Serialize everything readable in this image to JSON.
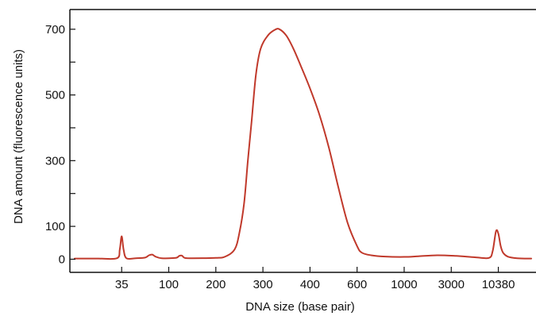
{
  "chart_data": {
    "type": "line",
    "xlabel": "DNA size (base pair)",
    "ylabel": "DNA amount (fluorescence units)",
    "ylim": [
      -40,
      760
    ],
    "y_ticks": [
      0,
      100,
      300,
      500,
      700
    ],
    "x_ticks": [
      {
        "label": "35",
        "pos": 1
      },
      {
        "label": "100",
        "pos": 2
      },
      {
        "label": "200",
        "pos": 3
      },
      {
        "label": "300",
        "pos": 4
      },
      {
        "label": "400",
        "pos": 5
      },
      {
        "label": "600",
        "pos": 6
      },
      {
        "label": "1000",
        "pos": 7
      },
      {
        "label": "3000",
        "pos": 8
      },
      {
        "label": "10380",
        "pos": 9
      }
    ],
    "x_scale": "ordinal ladder positions (non-linear base pair size)",
    "xlim": [
      -0.1,
      9.8
    ],
    "grid": false,
    "legend": "none",
    "line_color": "#c0392b",
    "series": [
      {
        "values": [
          [
            0.0,
            2
          ],
          [
            0.5,
            2
          ],
          [
            0.9,
            3
          ],
          [
            0.96,
            30
          ],
          [
            1.0,
            70
          ],
          [
            1.04,
            30
          ],
          [
            1.1,
            3
          ],
          [
            1.3,
            3
          ],
          [
            1.5,
            5
          ],
          [
            1.58,
            12
          ],
          [
            1.65,
            14
          ],
          [
            1.72,
            8
          ],
          [
            1.85,
            3
          ],
          [
            2.15,
            4
          ],
          [
            2.22,
            10
          ],
          [
            2.28,
            11
          ],
          [
            2.34,
            4
          ],
          [
            2.5,
            3
          ],
          [
            3.0,
            4
          ],
          [
            3.2,
            8
          ],
          [
            3.4,
            30
          ],
          [
            3.5,
            80
          ],
          [
            3.6,
            170
          ],
          [
            3.68,
            300
          ],
          [
            3.76,
            420
          ],
          [
            3.85,
            560
          ],
          [
            3.95,
            640
          ],
          [
            4.1,
            680
          ],
          [
            4.25,
            698
          ],
          [
            4.35,
            700
          ],
          [
            4.5,
            680
          ],
          [
            4.65,
            640
          ],
          [
            4.8,
            590
          ],
          [
            5.0,
            520
          ],
          [
            5.2,
            440
          ],
          [
            5.4,
            340
          ],
          [
            5.6,
            220
          ],
          [
            5.8,
            110
          ],
          [
            6.0,
            40
          ],
          [
            6.1,
            20
          ],
          [
            6.3,
            12
          ],
          [
            6.6,
            8
          ],
          [
            7.0,
            7
          ],
          [
            7.3,
            9
          ],
          [
            7.7,
            12
          ],
          [
            8.1,
            10
          ],
          [
            8.5,
            6
          ],
          [
            8.8,
            4
          ],
          [
            8.88,
            25
          ],
          [
            8.95,
            85
          ],
          [
            9.0,
            78
          ],
          [
            9.05,
            40
          ],
          [
            9.1,
            20
          ],
          [
            9.2,
            8
          ],
          [
            9.4,
            3
          ],
          [
            9.7,
            2
          ]
        ]
      }
    ]
  }
}
